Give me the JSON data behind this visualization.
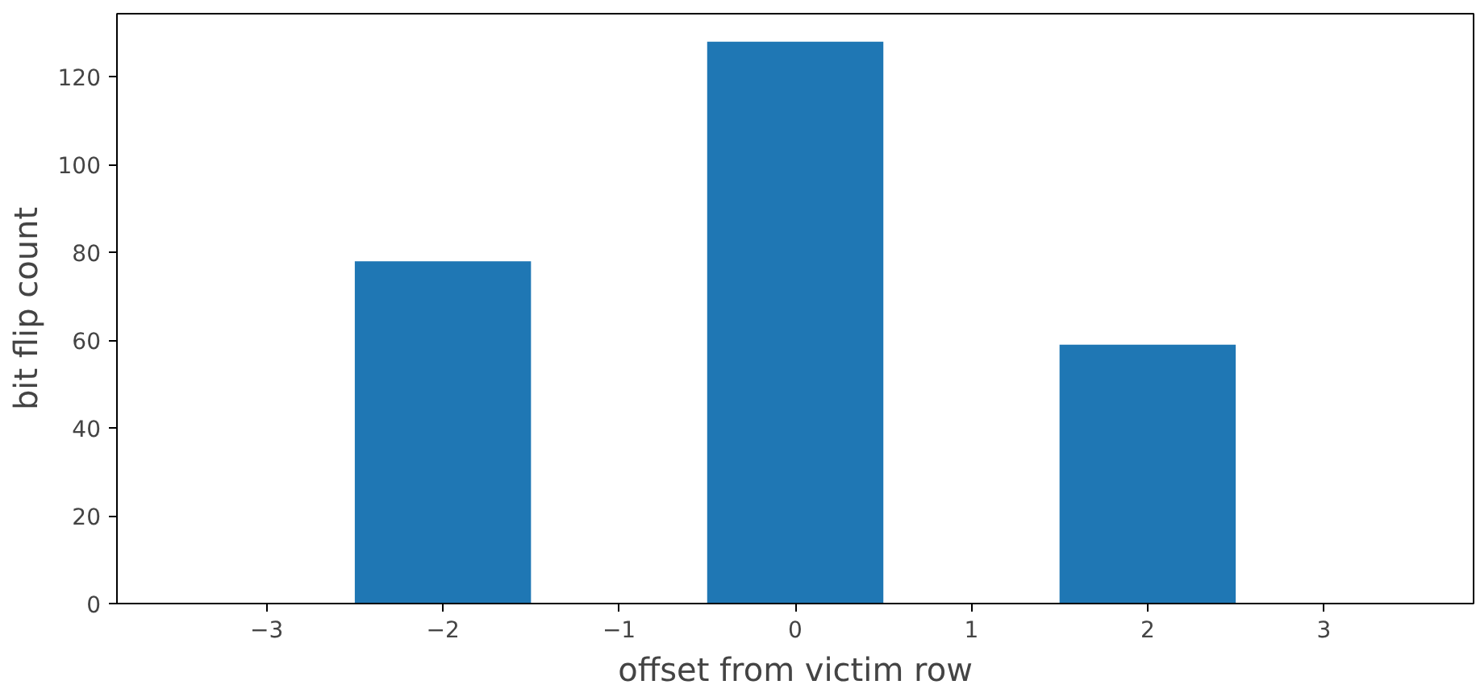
{
  "chart_data": {
    "type": "bar",
    "xlabel": "offset from victim row",
    "ylabel": "bit flip count",
    "x": [
      -3,
      -2,
      -1,
      0,
      1,
      2,
      3
    ],
    "series": [
      {
        "color": "#1f77b4",
        "values": [
          0,
          78,
          0,
          128,
          0,
          59,
          0
        ]
      }
    ],
    "xlim": [
      -3.85,
      3.85
    ],
    "ylim": [
      0,
      134.4
    ],
    "xticks": [
      {
        "value": -3,
        "label": "−3"
      },
      {
        "value": -2,
        "label": "−2"
      },
      {
        "value": -1,
        "label": "−1"
      },
      0,
      1,
      2,
      3
    ],
    "yticks": [
      0,
      20,
      40,
      60,
      80,
      100,
      120
    ],
    "grid": false
  }
}
